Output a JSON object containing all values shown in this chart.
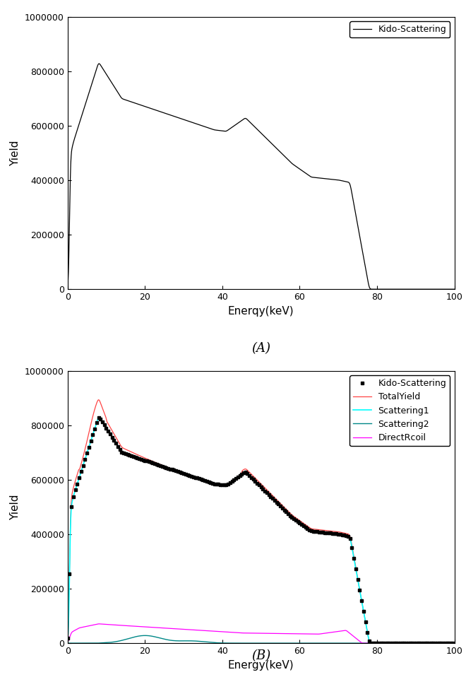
{
  "title_A": "(A)",
  "title_B": "(B)",
  "xlabel_A": "Enerqy(keV)",
  "xlabel_B": "Energy(keV)",
  "ylabel": "Yield",
  "xlim": [
    0,
    100
  ],
  "ylim": [
    0,
    1000000
  ],
  "yticks": [
    0,
    200000,
    400000,
    600000,
    800000,
    1000000
  ],
  "xticks": [
    0,
    20,
    40,
    60,
    80,
    100
  ],
  "legend_A": [
    "Kido-Scattering"
  ],
  "legend_B": [
    "Kido-Scattering",
    "TotalYield",
    "Scattering1",
    "Scattering2",
    "DirectRcoil"
  ],
  "colors": {
    "kido_A": "#000000",
    "kido_B": "#000000",
    "total": "#ff4444",
    "scattering1": "#00ffff",
    "scattering2": "#008888",
    "directrcoil": "#ff00ff"
  },
  "background": "#ffffff"
}
